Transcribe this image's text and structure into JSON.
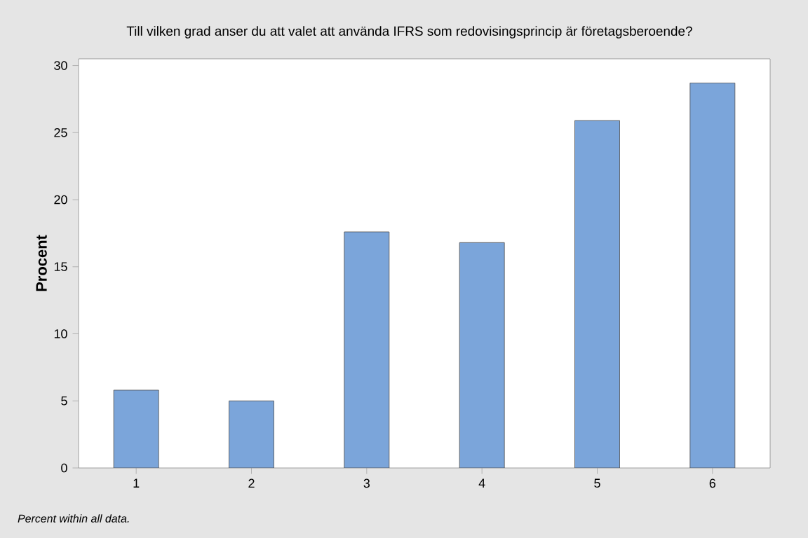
{
  "chart_data": {
    "type": "bar",
    "title": "Till vilken grad anser du att valet att använda IFRS som redovisingsprincip är företagsberoende?",
    "ylabel": "Procent",
    "categories": [
      "1",
      "2",
      "3",
      "4",
      "5",
      "6"
    ],
    "values": [
      5.8,
      5.0,
      17.6,
      16.8,
      25.9,
      28.7
    ],
    "color": "#7ba5da",
    "ylim": [
      0,
      30.5
    ],
    "yticks": [
      0,
      5,
      10,
      15,
      20,
      25,
      30
    ],
    "grid": false,
    "annotations": [
      "Percent within all data."
    ]
  }
}
